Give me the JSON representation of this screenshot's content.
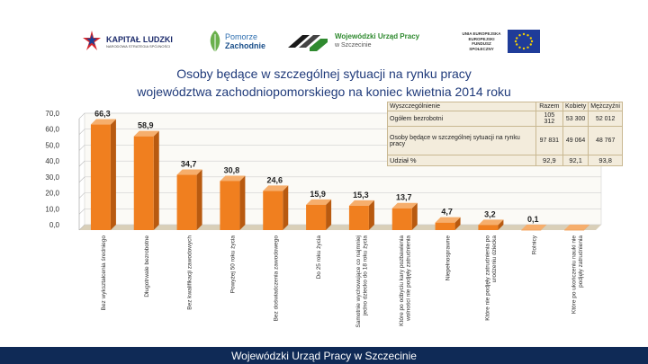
{
  "header": {
    "logos": [
      {
        "name": "kapital-ludzki",
        "line1": "KAPITAŁ LUDZKI",
        "line2": "NARODOWA STRATEGIA SPÓJNOŚCI"
      },
      {
        "name": "pomorze-zachodnie",
        "line1": "Pomorze",
        "line2": "Zachodnie"
      },
      {
        "name": "wup-szczecin",
        "line1": "Wojewódzki Urząd Pracy",
        "line2": "w Szczecinie"
      },
      {
        "name": "unia-europejska",
        "line1": "UNIA EUROPEJSKA",
        "line2": "EUROPEJSKI FUNDUSZ SPOŁECZNY"
      }
    ]
  },
  "title_line1": "Osoby będące w szczególnej sytuacji na rynku pracy",
  "title_line2": "województwa zachodniopomorskiego na koniec kwietnia 2014 roku",
  "info_table": {
    "headers": [
      "Wyszczególnienie",
      "Razem",
      "Kobiety",
      "Mężczyźni"
    ],
    "rows": [
      [
        "Ogółem bezrobotni",
        "105 312",
        "53 300",
        "52 012"
      ],
      [
        "Osoby będące w szczególnej sytuacji na rynku pracy",
        "97 831",
        "49 064",
        "48 767"
      ],
      [
        "Udział %",
        "92,9",
        "92,1",
        "93,8"
      ]
    ]
  },
  "chart_data": {
    "type": "bar",
    "title": "",
    "xlabel": "",
    "ylabel": "",
    "ylim": [
      0,
      70
    ],
    "yticks": [
      "0,0",
      "10,0",
      "20,0",
      "30,0",
      "40,0",
      "50,0",
      "60,0",
      "70,0"
    ],
    "grid": true,
    "legend": "none",
    "categories": [
      "Bez wykształcenia średniego",
      "Długotrwale bezrobotne",
      "Bez kwalifikacji zawodowych",
      "Powyżej 50 roku życia",
      "Bez doświadczenia zawodowego",
      "Do 25 roku życia",
      "Samotnie wychowujące co najmniej jedno dziecko do 18 roku życia",
      "Które po odbyciu kary pozbawienia wolności nie podjęły zatrudnienia",
      "Niepełnosprawne",
      "Które nie podjęły zatrudnienia po urodzeniu dziecka",
      "Rolnicy",
      "Które po ukończeniu nauki nie podjęły zatrudnienia"
    ],
    "values": [
      66.3,
      58.9,
      34.7,
      30.8,
      24.6,
      15.9,
      15.3,
      13.7,
      4.7,
      3.2,
      0.1,
      0.1
    ],
    "data_labels": [
      "66,3",
      "58,9",
      "34,7",
      "30,8",
      "24,6",
      "15,9",
      "15,3",
      "13,7",
      "4,7",
      "3,2",
      "0,1",
      ""
    ],
    "bar_color": "#f07f1f",
    "bar_side_color": "#b85a10",
    "bar_top_color": "#f6ae6c",
    "floor_color": "#d9cfb8"
  },
  "footer": {
    "text": "Wojewódzki Urząd Pracy w Szczecinie"
  }
}
